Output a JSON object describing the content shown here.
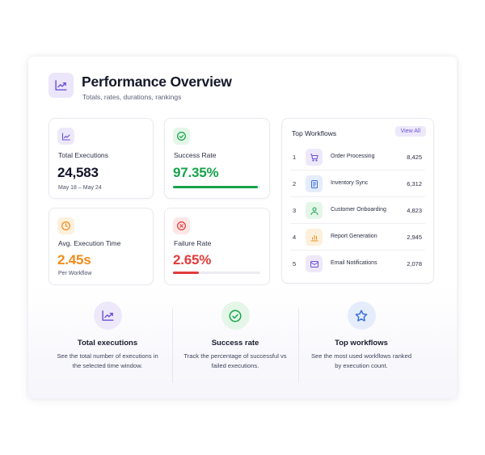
{
  "header": {
    "title": "Performance Overview",
    "subtitle": "Totals, rates, durations, rankings",
    "icon": "trend-up-icon"
  },
  "stats": {
    "total_executions": {
      "label": "Total Executions",
      "value": "24,583",
      "note": "May 18 – May 24",
      "icon": "trend-up-icon"
    },
    "success_rate": {
      "label": "Success Rate",
      "value": "97.35%",
      "progress": 0.9735,
      "color": "#16a34a",
      "icon": "check-circle-icon"
    },
    "avg_execution_time": {
      "label": "Avg. Execution Time",
      "value": "2.45s",
      "note": "Per Workflow",
      "color": "#f08c1b",
      "icon": "clock-icon"
    },
    "failure_rate": {
      "label": "Failure Rate",
      "value": "2.65%",
      "progress": 0.3,
      "color": "#e23b3b",
      "icon": "x-circle-icon"
    }
  },
  "top_workflows": {
    "title": "Top Workflows",
    "view_all_label": "View All",
    "items": [
      {
        "rank": "1",
        "name": "Order Processing",
        "count": "8,425",
        "icon": "cart-icon"
      },
      {
        "rank": "2",
        "name": "Inventory Sync",
        "count": "6,312",
        "icon": "document-icon"
      },
      {
        "rank": "3",
        "name": "Customer Onboarding",
        "count": "4,823",
        "icon": "user-icon"
      },
      {
        "rank": "4",
        "name": "Report Generation",
        "count": "2,945",
        "icon": "bar-chart-icon"
      },
      {
        "rank": "5",
        "name": "Email Notifications",
        "count": "2,078",
        "icon": "mail-icon"
      }
    ]
  },
  "features": [
    {
      "title": "Total executions",
      "description": "See the total number of executions in the selected time window.",
      "icon": "trend-up-icon"
    },
    {
      "title": "Success rate",
      "description": "Track the percentage of successful vs failed executions.",
      "icon": "check-circle-icon"
    },
    {
      "title": "Top workflows",
      "description": "See the most used workflows ranked by execution count.",
      "icon": "star-icon"
    }
  ]
}
